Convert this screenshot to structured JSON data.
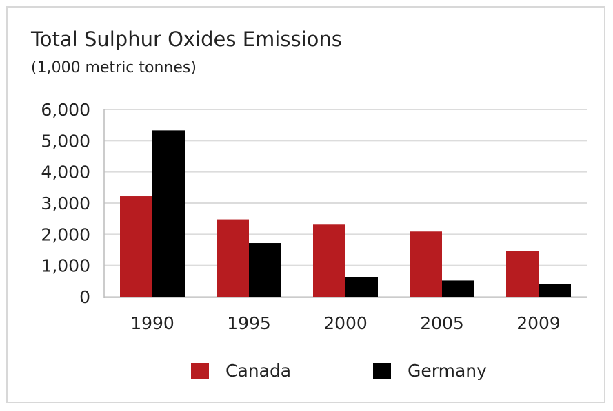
{
  "chart_data": {
    "type": "bar",
    "title": "Total Sulphur Oxides Emissions",
    "subtitle": "(1,000 metric tonnes)",
    "categories": [
      "1990",
      "1995",
      "2000",
      "2005",
      "2009"
    ],
    "series": [
      {
        "name": "Canada",
        "color": "#b71c20",
        "values": [
          3220,
          2480,
          2310,
          2090,
          1470
        ]
      },
      {
        "name": "Germany",
        "color": "#000000",
        "values": [
          5330,
          1720,
          630,
          520,
          410
        ]
      }
    ],
    "ylim": [
      0,
      6000
    ],
    "yticks": [
      0,
      1000,
      2000,
      3000,
      4000,
      5000,
      6000
    ],
    "ytick_labels": [
      "0",
      "1,000",
      "2,000",
      "3,000",
      "4,000",
      "5,000",
      "6,000"
    ],
    "grid": true,
    "legend": "bottom"
  }
}
